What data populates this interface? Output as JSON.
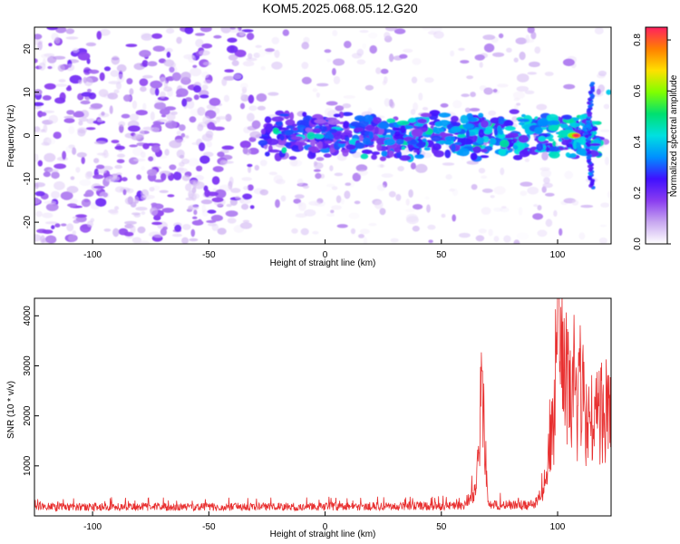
{
  "figure_title": "KOM5.2025.068.05.12.G20",
  "chart_data": [
    {
      "type": "heatmap",
      "title": "",
      "xlabel": "Height of straight line (km)",
      "ylabel": "Frequency (Hz)",
      "xlim": [
        -125,
        123
      ],
      "ylim": [
        -25,
        25
      ],
      "x_ticks": [
        -100,
        -50,
        0,
        50,
        100
      ],
      "y_ticks": [
        -20,
        -10,
        0,
        10,
        20
      ],
      "colorbar": {
        "label": "Normalized spectral amplitude",
        "range": [
          0,
          0.85
        ],
        "ticks": [
          "0.0",
          "0.2",
          "0.4",
          "0.6",
          "0.8"
        ],
        "colors": [
          "#ffffff",
          "#c8a8f0",
          "#8a3cf0",
          "#4010ff",
          "#0090ff",
          "#00e0e0",
          "#00e070",
          "#80ff00",
          "#ffe000",
          "#ff8000",
          "#ff2060"
        ]
      },
      "features": [
        {
          "name": "noise_background",
          "x_range": [
            -125,
            123
          ],
          "freq_range": [
            -25,
            25
          ],
          "amplitude": 0.15
        },
        {
          "name": "signal_band",
          "x_range": [
            -27,
            118
          ],
          "center_freq_hz": 0,
          "half_width_hz": 5,
          "amplitude": 0.3
        },
        {
          "name": "peak",
          "x_hz": [
            108,
            0
          ],
          "amplitude": 0.85
        },
        {
          "name": "dispersion_curve",
          "x_range": [
            108,
            123
          ],
          "freq_range": [
            -12,
            12
          ]
        }
      ]
    },
    {
      "type": "line",
      "title": "",
      "xlabel": "Height of straight line (km)",
      "ylabel": "SNR (10 * v/v)",
      "xlim": [
        -125,
        123
      ],
      "ylim": [
        0,
        4350
      ],
      "x_ticks": [
        -100,
        -50,
        0,
        50,
        100
      ],
      "y_ticks": [
        1000,
        2000,
        3000,
        4000
      ],
      "color": "#e83030",
      "profile": [
        {
          "x": -125,
          "y": 200
        },
        {
          "x": -30,
          "y": 200
        },
        {
          "x": 60,
          "y": 220
        },
        {
          "x": 65,
          "y": 600
        },
        {
          "x": 67.5,
          "y": 2900
        },
        {
          "x": 70,
          "y": 250
        },
        {
          "x": 90,
          "y": 250
        },
        {
          "x": 95,
          "y": 600
        },
        {
          "x": 97,
          "y": 1800
        },
        {
          "x": 100,
          "y": 2800
        },
        {
          "x": 100.5,
          "y": 4350
        },
        {
          "x": 105,
          "y": 2500
        },
        {
          "x": 110,
          "y": 2300
        },
        {
          "x": 115,
          "y": 2000
        },
        {
          "x": 123,
          "y": 2300
        }
      ]
    }
  ]
}
